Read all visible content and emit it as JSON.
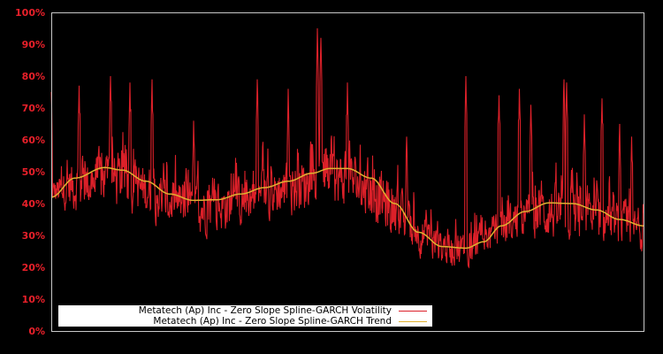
{
  "chart_data": {
    "type": "line",
    "title": "",
    "xlabel": "",
    "ylabel": "",
    "ylim": [
      0,
      100
    ],
    "y_ticks": [
      "0%",
      "10%",
      "20%",
      "30%",
      "40%",
      "50%",
      "60%",
      "70%",
      "80%",
      "90%",
      "100%"
    ],
    "x_ticks": [],
    "grid": false,
    "legend_position": "lower left",
    "background": "#000000",
    "tick_color": "#e8202a",
    "series": [
      {
        "name": "Metatech (Ap) Inc - Zero Slope Spline-GARCH Volatility",
        "color": "#dc2029",
        "style": "dense spiky line",
        "x_norm": [
          0.0,
          0.05,
          0.1,
          0.15,
          0.2,
          0.25,
          0.3,
          0.35,
          0.4,
          0.45,
          0.5,
          0.55,
          0.6,
          0.65,
          0.7,
          0.75,
          0.8,
          0.85,
          0.9,
          0.95,
          1.0
        ],
        "floor": [
          38,
          35,
          36,
          34,
          30,
          28,
          29,
          32,
          34,
          36,
          36,
          30,
          24,
          19,
          18,
          24,
          27,
          26,
          24,
          24,
          23
        ],
        "spikes": [
          {
            "x_norm": 0.0,
            "value": 75
          },
          {
            "x_norm": 0.047,
            "value": 77
          },
          {
            "x_norm": 0.1,
            "value": 80
          },
          {
            "x_norm": 0.133,
            "value": 78
          },
          {
            "x_norm": 0.17,
            "value": 79
          },
          {
            "x_norm": 0.24,
            "value": 66
          },
          {
            "x_norm": 0.348,
            "value": 79
          },
          {
            "x_norm": 0.4,
            "value": 76
          },
          {
            "x_norm": 0.45,
            "value": 82
          },
          {
            "x_norm": 0.449,
            "value": 95
          },
          {
            "x_norm": 0.455,
            "value": 92
          },
          {
            "x_norm": 0.5,
            "value": 78
          },
          {
            "x_norm": 0.6,
            "value": 61
          },
          {
            "x_norm": 0.7,
            "value": 80
          },
          {
            "x_norm": 0.756,
            "value": 74
          },
          {
            "x_norm": 0.79,
            "value": 76
          },
          {
            "x_norm": 0.81,
            "value": 71
          },
          {
            "x_norm": 0.866,
            "value": 79
          },
          {
            "x_norm": 0.87,
            "value": 78
          },
          {
            "x_norm": 0.9,
            "value": 68
          },
          {
            "x_norm": 0.93,
            "value": 73
          },
          {
            "x_norm": 0.96,
            "value": 65
          },
          {
            "x_norm": 0.98,
            "value": 61
          }
        ]
      },
      {
        "name": "Metatech (Ap) Inc - Zero Slope Spline-GARCH Trend",
        "color": "#e0b030",
        "style": "smooth line",
        "x_norm": [
          0.0,
          0.04,
          0.09,
          0.12,
          0.16,
          0.2,
          0.24,
          0.28,
          0.32,
          0.36,
          0.4,
          0.44,
          0.47,
          0.5,
          0.54,
          0.58,
          0.62,
          0.66,
          0.7,
          0.73,
          0.76,
          0.8,
          0.84,
          0.88,
          0.92,
          0.96,
          1.0
        ],
        "values": [
          42,
          48,
          51.3,
          50.5,
          47,
          43,
          41,
          41.2,
          43,
          45,
          47,
          49.5,
          51,
          51,
          48,
          40,
          31,
          26.5,
          26,
          28,
          33,
          37.5,
          40.2,
          40,
          38,
          35,
          33
        ]
      }
    ]
  },
  "legend": {
    "items": [
      {
        "label": "Metatech (Ap) Inc - Zero Slope Spline-GARCH Volatility",
        "color": "#dc2029"
      },
      {
        "label": "Metatech (Ap) Inc - Zero Slope Spline-GARCH Trend",
        "color": "#e0b030"
      }
    ]
  }
}
